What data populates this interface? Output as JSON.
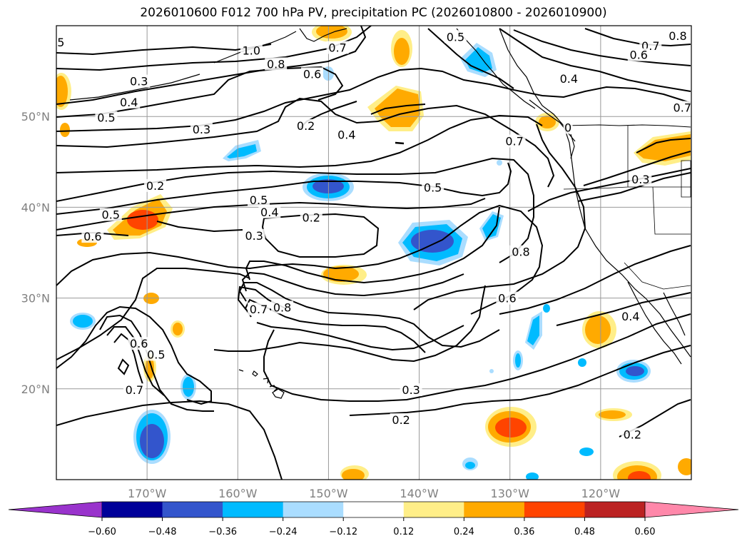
{
  "title": "2026010600 F012 700 hPa PV, precipitation PC (2026010800 - 2026010900)",
  "map": {
    "lat_labels": [
      "50°N",
      "40°N",
      "30°N",
      "20°N"
    ],
    "lon_labels": [
      "170°W",
      "160°W",
      "150°W",
      "140°W",
      "130°W",
      "120°W"
    ],
    "grid": true
  },
  "contour_labels": [
    {
      "text": "5",
      "lon": -179.5,
      "lat": 58.2
    },
    {
      "text": "1.0",
      "lon": -158.5,
      "lat": 57.3
    },
    {
      "text": "0.8",
      "lon": -155.8,
      "lat": 55.8
    },
    {
      "text": "0.6",
      "lon": -151.8,
      "lat": 54.7
    },
    {
      "text": "0.3",
      "lon": -170.9,
      "lat": 53.9
    },
    {
      "text": "0.4",
      "lon": -172.0,
      "lat": 51.6
    },
    {
      "text": "0.5",
      "lon": -174.5,
      "lat": 49.9
    },
    {
      "text": "0.3",
      "lon": -164.0,
      "lat": 48.6
    },
    {
      "text": "0.2",
      "lon": -152.5,
      "lat": 49.0
    },
    {
      "text": "0.4",
      "lon": -148.0,
      "lat": 48.0
    },
    {
      "text": "0.7",
      "lon": -149.0,
      "lat": 57.6
    },
    {
      "text": "0.5",
      "lon": -136.0,
      "lat": 58.8
    },
    {
      "text": "0.4",
      "lon": -123.5,
      "lat": 54.2
    },
    {
      "text": "0.8",
      "lon": -111.5,
      "lat": 58.9
    },
    {
      "text": "0.7",
      "lon": -114.5,
      "lat": 57.8
    },
    {
      "text": "0.6",
      "lon": -115.8,
      "lat": 56.8
    },
    {
      "text": "0.7",
      "lon": -111.0,
      "lat": 51.0
    },
    {
      "text": "0",
      "lon": -123.6,
      "lat": 48.8
    },
    {
      "text": "0.7",
      "lon": -129.5,
      "lat": 47.3
    },
    {
      "text": "0.3",
      "lon": -115.6,
      "lat": 43.1
    },
    {
      "text": "0.2",
      "lon": -169.1,
      "lat": 42.4
    },
    {
      "text": "0.5",
      "lon": -157.7,
      "lat": 40.8
    },
    {
      "text": "0.4",
      "lon": -156.5,
      "lat": 39.5
    },
    {
      "text": "0.5",
      "lon": -138.5,
      "lat": 42.2
    },
    {
      "text": "0.5",
      "lon": -174.0,
      "lat": 39.2
    },
    {
      "text": "0.2",
      "lon": -151.9,
      "lat": 38.9
    },
    {
      "text": "0.6",
      "lon": -176.0,
      "lat": 36.8
    },
    {
      "text": "0.3",
      "lon": -158.2,
      "lat": 36.9
    },
    {
      "text": "0.8",
      "lon": -128.8,
      "lat": 35.1
    },
    {
      "text": "0.6",
      "lon": -130.3,
      "lat": 30.0
    },
    {
      "text": "0.7",
      "lon": -157.7,
      "lat": 28.8
    },
    {
      "text": "0.8",
      "lon": -155.1,
      "lat": 29.0
    },
    {
      "text": "0.4",
      "lon": -116.7,
      "lat": 28.0
    },
    {
      "text": "0.6",
      "lon": -170.9,
      "lat": 25.0
    },
    {
      "text": "0.5",
      "lon": -169.0,
      "lat": 23.8
    },
    {
      "text": "0.7",
      "lon": -171.4,
      "lat": 19.9
    },
    {
      "text": "0.3",
      "lon": -140.9,
      "lat": 19.9
    },
    {
      "text": "0.2",
      "lon": -142.0,
      "lat": 16.6
    },
    {
      "text": "0.2",
      "lon": -116.5,
      "lat": 15.0
    }
  ],
  "colorbar": {
    "ticks": [
      "−0.60",
      "−0.48",
      "−0.36",
      "−0.24",
      "−0.12",
      "0.12",
      "0.24",
      "0.36",
      "0.48",
      "0.60"
    ],
    "under_color": "#9933cc",
    "over_color": "#ff88aa",
    "colors": [
      "#000099",
      "#3355cc",
      "#00bbff",
      "#aaddff",
      "#ffffff",
      "#ffee88",
      "#ffaa00",
      "#ff4400",
      "#bb2222"
    ]
  }
}
